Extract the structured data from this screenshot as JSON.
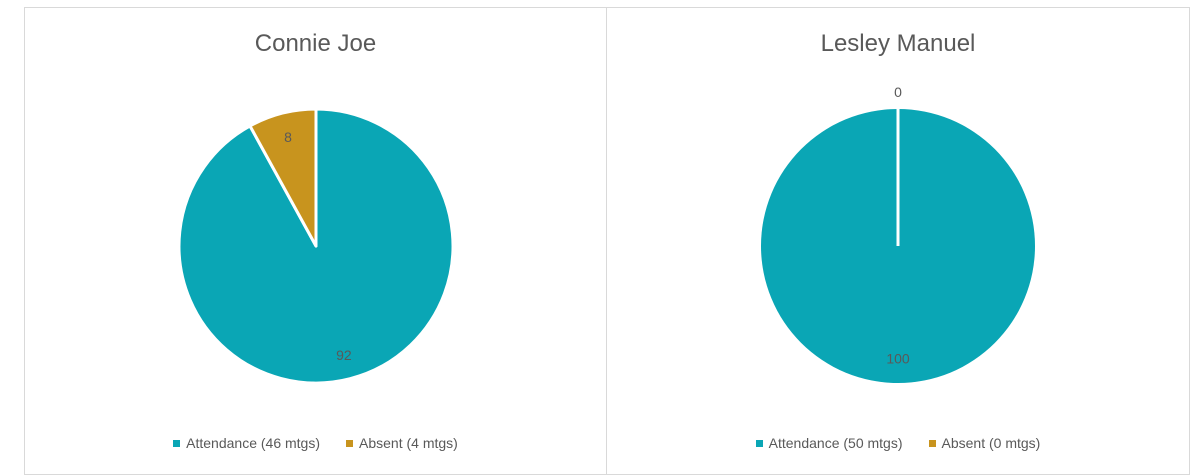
{
  "chart_data": [
    {
      "type": "pie",
      "title": "Connie Joe",
      "slices": [
        {
          "legend": "Attendance (46 mtgs)",
          "value": 92,
          "label": "92",
          "color": "#0aa6b5"
        },
        {
          "legend": "Absent (4 mtgs)",
          "value": 8,
          "label": "8",
          "color": "#c8941e"
        }
      ],
      "legend_position": "bottom"
    },
    {
      "type": "pie",
      "title": "Lesley Manuel",
      "slices": [
        {
          "legend": "Attendance (50 mtgs)",
          "value": 100,
          "label": "100",
          "color": "#0aa6b5"
        },
        {
          "legend": "Absent (0 mtgs)",
          "value": 0,
          "label": "0",
          "color": "#c8941e"
        }
      ],
      "legend_position": "bottom"
    }
  ]
}
